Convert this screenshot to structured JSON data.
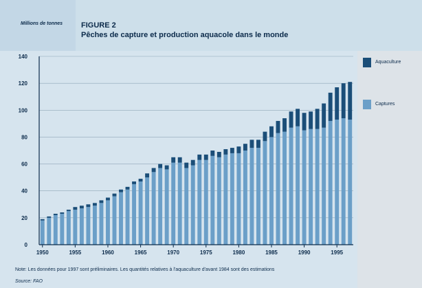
{
  "header": {
    "unit_label": "Millions de tonnes",
    "figure_number": "FIGURE 2",
    "title": "Pêches de capture et production aquacole dans le monde"
  },
  "legend": {
    "aquaculture": "Aquaculture",
    "captures": "Captures"
  },
  "note": "Note: Les données pour 1997 sont préliminaires. Les quantités relatives à l'aquaculture d'avant 1984 sont des estimations",
  "source": "Source: FAO",
  "colors": {
    "aquaculture": "#1b4e78",
    "captures": "#6b9fc8",
    "axis": "#0b2a4a"
  },
  "chart_data": {
    "type": "bar",
    "stacked": true,
    "ylim": [
      0,
      140
    ],
    "yticks": [
      0,
      20,
      40,
      60,
      80,
      100,
      120,
      140
    ],
    "xticks": [
      1950,
      1955,
      1960,
      1965,
      1970,
      1975,
      1980,
      1985,
      1990,
      1995
    ],
    "grid": true,
    "legend_position": "right",
    "categories": [
      1950,
      1951,
      1952,
      1953,
      1954,
      1955,
      1956,
      1957,
      1958,
      1959,
      1960,
      1961,
      1962,
      1963,
      1964,
      1965,
      1966,
      1967,
      1968,
      1969,
      1970,
      1971,
      1972,
      1973,
      1974,
      1975,
      1976,
      1977,
      1978,
      1979,
      1980,
      1981,
      1982,
      1983,
      1984,
      1985,
      1986,
      1987,
      1988,
      1989,
      1990,
      1991,
      1992,
      1993,
      1994,
      1995,
      1996,
      1997
    ],
    "series": [
      {
        "name": "Captures",
        "values": [
          18,
          20,
          22,
          23,
          25,
          26,
          27,
          28,
          29,
          31,
          33,
          36,
          39,
          41,
          45,
          47,
          50,
          54,
          57,
          56,
          61,
          61,
          57,
          59,
          63,
          63,
          66,
          65,
          67,
          68,
          68,
          70,
          72,
          72,
          77,
          80,
          83,
          84,
          87,
          88,
          85,
          86,
          86,
          87,
          92,
          93,
          94,
          93
        ]
      },
      {
        "name": "Aquaculture",
        "values": [
          1,
          1,
          1,
          1,
          1,
          2,
          2,
          2,
          2,
          2,
          2,
          2,
          2,
          2,
          2,
          2,
          3,
          3,
          3,
          3,
          4,
          4,
          4,
          4,
          4,
          4,
          4,
          4,
          4,
          4,
          5,
          5,
          6,
          6,
          7,
          8,
          9,
          10,
          12,
          13,
          13,
          13,
          15,
          18,
          21,
          24,
          26,
          28
        ]
      }
    ]
  }
}
